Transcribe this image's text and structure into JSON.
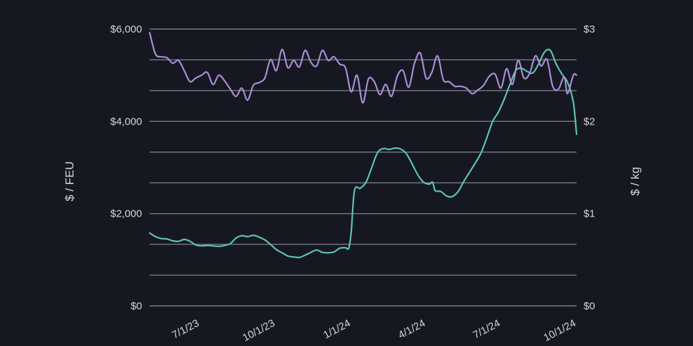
{
  "colors": {
    "background": "#161821",
    "grid": "#7a7c86",
    "text": "#d6d6dc"
  },
  "chart_data": {
    "type": "line",
    "title": "",
    "xlabel": "",
    "ylabel": "$ / FEU",
    "ylabel_right": "$ / kg",
    "grid": true,
    "legend": "none",
    "x_ticks": [
      "7/1/23",
      "10/1/23",
      "1/1/24",
      "4/1/24",
      "7/1/24",
      "10/1/24"
    ],
    "x_range": [
      "2023-05-01",
      "2024-10-01"
    ],
    "y_left": {
      "ticks": [
        "$0",
        "$2,000",
        "$4,000",
        "$6,000"
      ],
      "ylim": [
        0,
        6000
      ]
    },
    "y_right": {
      "ticks": [
        "$0",
        "$1",
        "$2",
        "$3"
      ],
      "ylim": [
        0,
        3
      ]
    },
    "series": [
      {
        "axis": "left",
        "color": "#5ec4b6",
        "points": [
          [
            "2023-05-01",
            1580
          ],
          [
            "2023-05-08",
            1500
          ],
          [
            "2023-05-15",
            1460
          ],
          [
            "2023-05-22",
            1450
          ],
          [
            "2023-05-29",
            1410
          ],
          [
            "2023-06-05",
            1400
          ],
          [
            "2023-06-12",
            1440
          ],
          [
            "2023-06-19",
            1400
          ],
          [
            "2023-06-26",
            1320
          ],
          [
            "2023-07-03",
            1300
          ],
          [
            "2023-07-10",
            1310
          ],
          [
            "2023-07-17",
            1300
          ],
          [
            "2023-07-24",
            1290
          ],
          [
            "2023-07-31",
            1310
          ],
          [
            "2023-08-07",
            1350
          ],
          [
            "2023-08-14",
            1470
          ],
          [
            "2023-08-21",
            1520
          ],
          [
            "2023-08-28",
            1500
          ],
          [
            "2023-09-04",
            1530
          ],
          [
            "2023-09-11",
            1490
          ],
          [
            "2023-09-18",
            1430
          ],
          [
            "2023-09-25",
            1330
          ],
          [
            "2023-10-02",
            1220
          ],
          [
            "2023-10-09",
            1150
          ],
          [
            "2023-10-16",
            1080
          ],
          [
            "2023-10-23",
            1060
          ],
          [
            "2023-10-30",
            1050
          ],
          [
            "2023-11-06",
            1100
          ],
          [
            "2023-11-13",
            1160
          ],
          [
            "2023-11-20",
            1210
          ],
          [
            "2023-11-27",
            1160
          ],
          [
            "2023-12-04",
            1150
          ],
          [
            "2023-12-11",
            1170
          ],
          [
            "2023-12-18",
            1250
          ],
          [
            "2023-12-25",
            1260
          ],
          [
            "2023-12-29",
            1250
          ],
          [
            "2024-01-01",
            1600
          ],
          [
            "2024-01-05",
            2500
          ],
          [
            "2024-01-12",
            2550
          ],
          [
            "2024-01-19",
            2680
          ],
          [
            "2024-01-26",
            3000
          ],
          [
            "2024-02-02",
            3320
          ],
          [
            "2024-02-09",
            3410
          ],
          [
            "2024-02-16",
            3390
          ],
          [
            "2024-02-23",
            3420
          ],
          [
            "2024-03-01",
            3400
          ],
          [
            "2024-03-08",
            3300
          ],
          [
            "2024-03-15",
            3080
          ],
          [
            "2024-03-22",
            2840
          ],
          [
            "2024-03-29",
            2680
          ],
          [
            "2024-04-05",
            2640
          ],
          [
            "2024-04-09",
            2680
          ],
          [
            "2024-04-12",
            2500
          ],
          [
            "2024-04-19",
            2480
          ],
          [
            "2024-04-26",
            2380
          ],
          [
            "2024-05-03",
            2370
          ],
          [
            "2024-05-10",
            2480
          ],
          [
            "2024-05-17",
            2700
          ],
          [
            "2024-05-24",
            2900
          ],
          [
            "2024-05-31",
            3100
          ],
          [
            "2024-06-07",
            3320
          ],
          [
            "2024-06-14",
            3650
          ],
          [
            "2024-06-21",
            4000
          ],
          [
            "2024-06-28",
            4200
          ],
          [
            "2024-07-05",
            4480
          ],
          [
            "2024-07-12",
            4800
          ],
          [
            "2024-07-19",
            5100
          ],
          [
            "2024-07-26",
            5150
          ],
          [
            "2024-08-02",
            5080
          ],
          [
            "2024-08-09",
            5050
          ],
          [
            "2024-08-16",
            5250
          ],
          [
            "2024-08-23",
            5500
          ],
          [
            "2024-08-30",
            5540
          ],
          [
            "2024-09-06",
            5250
          ],
          [
            "2024-09-13",
            5030
          ],
          [
            "2024-09-20",
            4850
          ],
          [
            "2024-09-27",
            4420
          ],
          [
            "2024-10-01",
            3720
          ]
        ]
      },
      {
        "axis": "right",
        "color": "#ab8ed9",
        "points": [
          [
            "2023-05-01",
            2.96
          ],
          [
            "2023-05-08",
            2.73
          ],
          [
            "2023-05-15",
            2.7
          ],
          [
            "2023-05-22",
            2.69
          ],
          [
            "2023-05-29",
            2.63
          ],
          [
            "2023-06-05",
            2.66
          ],
          [
            "2023-06-12",
            2.55
          ],
          [
            "2023-06-19",
            2.43
          ],
          [
            "2023-06-26",
            2.47
          ],
          [
            "2023-07-03",
            2.5
          ],
          [
            "2023-07-10",
            2.53
          ],
          [
            "2023-07-17",
            2.4
          ],
          [
            "2023-07-24",
            2.5
          ],
          [
            "2023-07-31",
            2.44
          ],
          [
            "2023-08-07",
            2.35
          ],
          [
            "2023-08-14",
            2.27
          ],
          [
            "2023-08-21",
            2.36
          ],
          [
            "2023-08-28",
            2.23
          ],
          [
            "2023-09-04",
            2.39
          ],
          [
            "2023-09-11",
            2.42
          ],
          [
            "2023-09-18",
            2.47
          ],
          [
            "2023-09-25",
            2.67
          ],
          [
            "2023-10-02",
            2.55
          ],
          [
            "2023-10-09",
            2.78
          ],
          [
            "2023-10-16",
            2.58
          ],
          [
            "2023-10-23",
            2.66
          ],
          [
            "2023-10-30",
            2.59
          ],
          [
            "2023-11-06",
            2.77
          ],
          [
            "2023-11-13",
            2.64
          ],
          [
            "2023-11-20",
            2.6
          ],
          [
            "2023-11-27",
            2.77
          ],
          [
            "2023-12-04",
            2.66
          ],
          [
            "2023-12-11",
            2.7
          ],
          [
            "2023-12-18",
            2.62
          ],
          [
            "2023-12-25",
            2.58
          ],
          [
            "2024-01-01",
            2.32
          ],
          [
            "2024-01-08",
            2.5
          ],
          [
            "2024-01-15",
            2.2
          ],
          [
            "2024-01-22",
            2.46
          ],
          [
            "2024-01-29",
            2.43
          ],
          [
            "2024-02-05",
            2.29
          ],
          [
            "2024-02-12",
            2.4
          ],
          [
            "2024-02-19",
            2.27
          ],
          [
            "2024-02-26",
            2.49
          ],
          [
            "2024-03-04",
            2.55
          ],
          [
            "2024-03-11",
            2.37
          ],
          [
            "2024-03-18",
            2.63
          ],
          [
            "2024-03-25",
            2.74
          ],
          [
            "2024-04-01",
            2.47
          ],
          [
            "2024-04-08",
            2.53
          ],
          [
            "2024-04-15",
            2.71
          ],
          [
            "2024-04-22",
            2.45
          ],
          [
            "2024-04-29",
            2.43
          ],
          [
            "2024-05-06",
            2.38
          ],
          [
            "2024-05-13",
            2.38
          ],
          [
            "2024-05-20",
            2.36
          ],
          [
            "2024-05-27",
            2.3
          ],
          [
            "2024-06-03",
            2.34
          ],
          [
            "2024-06-10",
            2.39
          ],
          [
            "2024-06-17",
            2.49
          ],
          [
            "2024-06-24",
            2.51
          ],
          [
            "2024-07-01",
            2.36
          ],
          [
            "2024-07-08",
            2.57
          ],
          [
            "2024-07-15",
            2.4
          ],
          [
            "2024-07-22",
            2.66
          ],
          [
            "2024-07-29",
            2.47
          ],
          [
            "2024-08-05",
            2.52
          ],
          [
            "2024-08-12",
            2.71
          ],
          [
            "2024-08-19",
            2.6
          ],
          [
            "2024-08-26",
            2.67
          ],
          [
            "2024-09-02",
            2.38
          ],
          [
            "2024-09-09",
            2.35
          ],
          [
            "2024-09-16",
            2.48
          ],
          [
            "2024-09-20",
            2.3
          ],
          [
            "2024-09-27",
            2.5
          ],
          [
            "2024-10-01",
            2.5
          ]
        ]
      }
    ]
  }
}
